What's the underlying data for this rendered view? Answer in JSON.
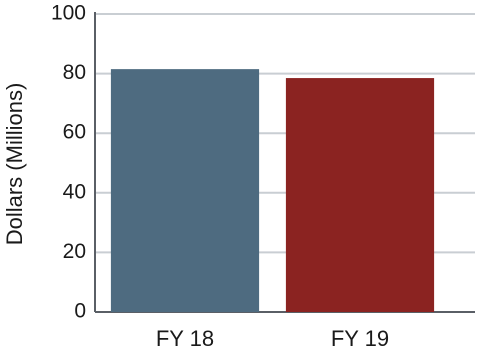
{
  "chart_data": {
    "type": "bar",
    "y_label": "Dollars (Millions)",
    "categories": [
      "FY 18",
      "FY 19"
    ],
    "values": [
      81.5,
      78.5
    ],
    "colors": [
      "#4e6b80",
      "#8b2321"
    ],
    "ylim": [
      0,
      100
    ],
    "yticks": [
      0,
      20,
      40,
      60,
      80,
      100
    ],
    "grid": true
  }
}
